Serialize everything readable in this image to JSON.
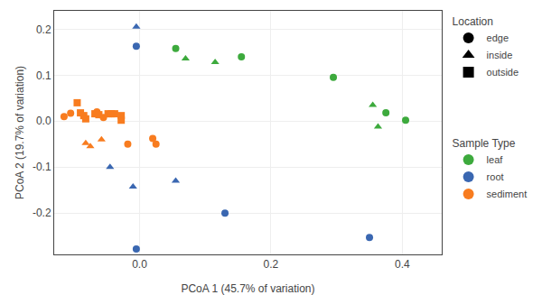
{
  "chart_data": {
    "type": "scatter",
    "xlabel": "PCoA 1 (45.7% of variation)",
    "ylabel": "PCoA 2 (19.7% of variation)",
    "xlim": [
      -0.13,
      0.46
    ],
    "ylim": [
      -0.29,
      0.24
    ],
    "xticks": [
      {
        "value": 0.0,
        "label": "0.0"
      },
      0.2,
      0.4
    ],
    "yticks": [
      -0.2,
      -0.1,
      {
        "value": 0.0,
        "label": "0.0"
      },
      0.1,
      0.2
    ],
    "grid": true,
    "series": [
      {
        "name": "root",
        "color": "#3A67B1",
        "x": [
          -0.005,
          -0.005,
          -0.045,
          -0.01,
          0.055,
          0.13,
          0.35,
          -0.005
        ],
        "values": [
          0.205,
          0.163,
          -0.1,
          -0.143,
          -0.13,
          -0.2,
          -0.253,
          -0.278
        ],
        "markers": [
          "triangle",
          "circle",
          "triangle",
          "triangle",
          "triangle",
          "circle",
          "circle",
          "circle"
        ]
      },
      {
        "name": "leaf",
        "color": "#3DAA3D",
        "x": [
          0.055,
          0.07,
          0.115,
          0.155,
          0.295,
          0.355,
          0.375,
          0.405,
          0.363
        ],
        "values": [
          0.158,
          0.136,
          0.128,
          0.14,
          0.095,
          0.035,
          0.018,
          0.002,
          -0.012
        ],
        "markers": [
          "circle",
          "triangle",
          "triangle",
          "circle",
          "circle",
          "triangle",
          "circle",
          "circle",
          "triangle"
        ]
      },
      {
        "name": "sediment",
        "color": "#F87C1F",
        "x": [
          -0.115,
          -0.105,
          -0.095,
          -0.09,
          -0.085,
          -0.082,
          -0.082,
          -0.075,
          -0.068,
          -0.065,
          -0.062,
          -0.058,
          -0.055,
          -0.048,
          -0.043,
          -0.038,
          -0.028,
          -0.028,
          -0.018,
          0.02,
          0.025
        ],
        "values": [
          0.01,
          0.017,
          0.04,
          0.018,
          0.012,
          0.005,
          -0.048,
          -0.055,
          0.016,
          0.02,
          0.014,
          -0.04,
          0.008,
          0.016,
          0.016,
          0.016,
          0.012,
          0.002,
          -0.05,
          -0.038,
          -0.05
        ],
        "markers": [
          "circle",
          "circle",
          "square",
          "square",
          "square",
          "square",
          "triangle",
          "triangle",
          "square",
          "circle",
          "square",
          "triangle",
          "circle",
          "square",
          "square",
          "square",
          "square",
          "square",
          "circle",
          "circle",
          "circle"
        ]
      }
    ],
    "legends": [
      {
        "title": "Location",
        "entries": [
          {
            "name": "edge",
            "marker": "circle",
            "color": "black"
          },
          {
            "name": "inside",
            "marker": "triangle",
            "color": "black"
          },
          {
            "name": "outside",
            "marker": "square",
            "color": "black"
          }
        ]
      },
      {
        "title": "Sample Type",
        "entries": [
          {
            "name": "leaf",
            "marker": "circle",
            "color": "#3DAA3D"
          },
          {
            "name": "root",
            "marker": "circle",
            "color": "#3A67B1"
          },
          {
            "name": "sediment",
            "marker": "circle",
            "color": "#F87C1F"
          }
        ]
      }
    ]
  }
}
